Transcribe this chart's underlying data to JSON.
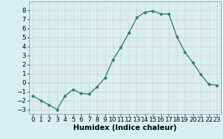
{
  "x": [
    0,
    1,
    2,
    3,
    4,
    5,
    6,
    7,
    8,
    9,
    10,
    11,
    12,
    13,
    14,
    15,
    16,
    17,
    18,
    19,
    20,
    21,
    22,
    23
  ],
  "y": [
    -1.5,
    -2.0,
    -2.5,
    -3.0,
    -1.5,
    -0.8,
    -1.2,
    -1.3,
    -0.5,
    0.5,
    2.5,
    3.9,
    5.5,
    7.2,
    7.8,
    7.95,
    7.6,
    7.6,
    5.1,
    3.4,
    2.2,
    0.9,
    -0.2,
    -0.3
  ],
  "xlabel": "Humidex (Indice chaleur)",
  "xlim": [
    -0.5,
    23.5
  ],
  "ylim": [
    -3.5,
    9.0
  ],
  "yticks": [
    -3,
    -2,
    -1,
    0,
    1,
    2,
    3,
    4,
    5,
    6,
    7,
    8
  ],
  "xticks": [
    0,
    1,
    2,
    3,
    4,
    5,
    6,
    7,
    8,
    9,
    10,
    11,
    12,
    13,
    14,
    15,
    16,
    17,
    18,
    19,
    20,
    21,
    22,
    23
  ],
  "line_color": "#2d7d6e",
  "marker_size": 2.5,
  "bg_color": "#d6f0f0",
  "grid_color": "#c8e8e8",
  "xlabel_fontsize": 7.5,
  "tick_fontsize": 6.5
}
